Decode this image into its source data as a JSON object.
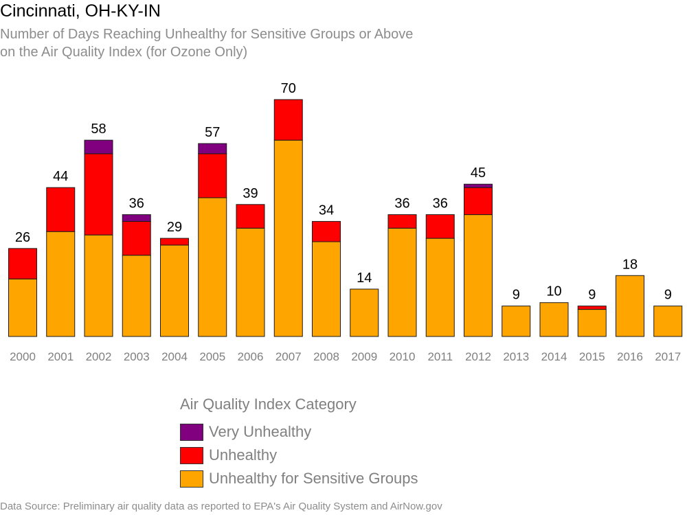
{
  "title": "Cincinnati, OH-KY-IN",
  "subtitle_lines": [
    "Number of Days Reaching Unhealthy for Sensitive Groups or Above",
    "on the Air Quality Index (for Ozone Only)"
  ],
  "source": "Data Source: Preliminary air quality data as reported to EPA's Air Quality System and AirNow.gov",
  "legend": {
    "title": "Air Quality Index Category",
    "items": [
      {
        "label": "Very Unhealthy",
        "color": "#800080"
      },
      {
        "label": "Unhealthy",
        "color": "#ff0000"
      },
      {
        "label": "Unhealthy for Sensitive Groups",
        "color": "#ffa500"
      }
    ]
  },
  "chart_data": {
    "type": "bar",
    "stacked": true,
    "categories": [
      "2000",
      "2001",
      "2002",
      "2003",
      "2004",
      "2005",
      "2006",
      "2007",
      "2008",
      "2009",
      "2010",
      "2011",
      "2012",
      "2013",
      "2014",
      "2015",
      "2016",
      "2017"
    ],
    "totals": [
      26,
      44,
      58,
      36,
      29,
      57,
      39,
      70,
      34,
      14,
      36,
      36,
      45,
      9,
      10,
      9,
      18,
      9
    ],
    "series": [
      {
        "name": "Unhealthy for Sensitive Groups",
        "color": "#ffa500",
        "values": [
          17,
          31,
          30,
          24,
          27,
          41,
          32,
          58,
          28,
          14,
          32,
          29,
          36,
          9,
          10,
          8,
          18,
          9
        ]
      },
      {
        "name": "Unhealthy",
        "color": "#ff0000",
        "values": [
          9,
          13,
          24,
          10,
          2,
          13,
          7,
          12,
          6,
          0,
          4,
          7,
          8,
          0,
          0,
          1,
          0,
          0
        ]
      },
      {
        "name": "Very Unhealthy",
        "color": "#800080",
        "values": [
          0,
          0,
          4,
          2,
          0,
          3,
          0,
          0,
          0,
          0,
          0,
          0,
          1,
          0,
          0,
          0,
          0,
          0
        ]
      }
    ],
    "ylim": [
      0,
      70
    ],
    "grid": false,
    "legend_position": "bottom-center"
  }
}
